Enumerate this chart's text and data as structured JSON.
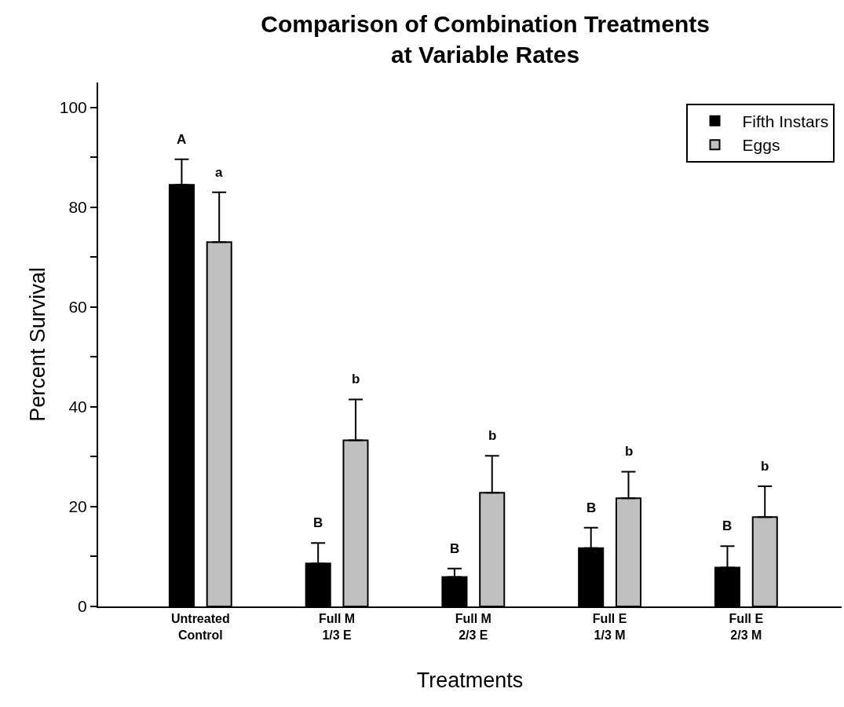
{
  "chart_data": {
    "type": "bar",
    "title": "Comparison of Combination Treatments\nat Variable Rates",
    "xlabel": "Treatments",
    "ylabel": "Percent Survival",
    "categories": [
      "Untreated\nControl",
      "Full M\n1/3 E",
      "Full M\n2/3 E",
      "Full E\n1/3 M",
      "Full E\n2/3 M"
    ],
    "series": [
      {
        "name": "Fifth Instars",
        "color": "#000000",
        "values": [
          84.5,
          8.6,
          5.9,
          11.7,
          7.8
        ],
        "errors": [
          [
            84.5,
            89.6
          ],
          [
            8.6,
            12.7
          ],
          [
            5.9,
            7.6
          ],
          [
            11.7,
            15.8
          ],
          [
            7.8,
            12.1
          ]
        ]
      },
      {
        "name": "Eggs",
        "color": "#c0c0c0",
        "values": [
          73.0,
          33.3,
          22.8,
          21.7,
          17.9
        ],
        "errors": [
          [
            73.0,
            83.0
          ],
          [
            33.3,
            41.5
          ],
          [
            22.8,
            30.2
          ],
          [
            21.7,
            27.0
          ],
          [
            17.9,
            24.1
          ]
        ]
      }
    ],
    "annotations": [
      "A",
      "a",
      "B",
      "b",
      "B",
      "b",
      "B",
      "b",
      "B",
      "b"
    ],
    "ylim": [
      0,
      105
    ],
    "yticks": [
      0,
      {
        "value": 10,
        "label": null
      },
      20,
      {
        "value": 30,
        "label": null
      },
      40,
      {
        "value": 50,
        "label": null
      },
      60,
      {
        "value": 70,
        "label": null
      },
      80,
      {
        "value": 90,
        "label": null
      },
      100
    ],
    "legend": "top right"
  }
}
